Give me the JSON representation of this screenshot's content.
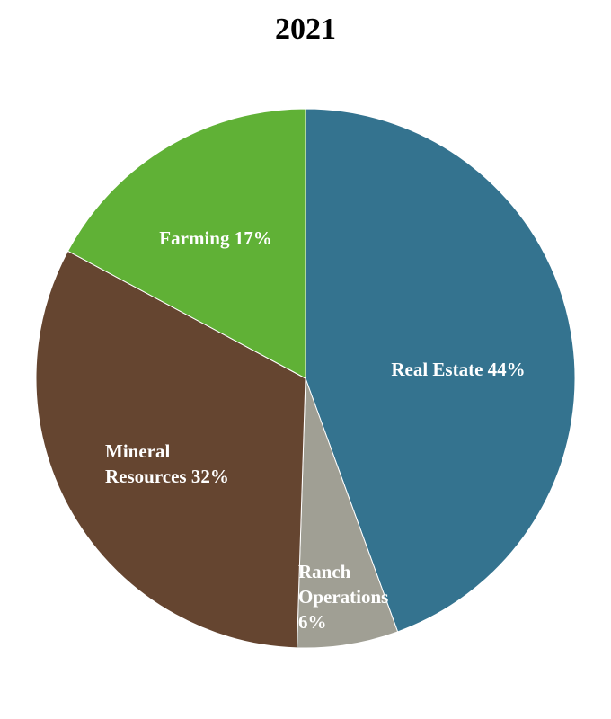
{
  "chart_data": {
    "type": "pie",
    "title": "2021",
    "slices": [
      {
        "name": "Real Estate",
        "value": 44,
        "color": "#34738F",
        "label_lines": [
          "Real Estate 44%"
        ]
      },
      {
        "name": "Ranch Operations",
        "value": 6,
        "color": "#A09F94",
        "label_lines": [
          "Ranch",
          "Operations",
          "6%"
        ]
      },
      {
        "name": "Mineral Resources",
        "value": 32,
        "color": "#654530",
        "label_lines": [
          "Mineral",
          "Resources 32%"
        ]
      },
      {
        "name": "Farming",
        "value": 17,
        "color": "#60B136",
        "label_lines": [
          "Farming 17%"
        ]
      }
    ]
  }
}
